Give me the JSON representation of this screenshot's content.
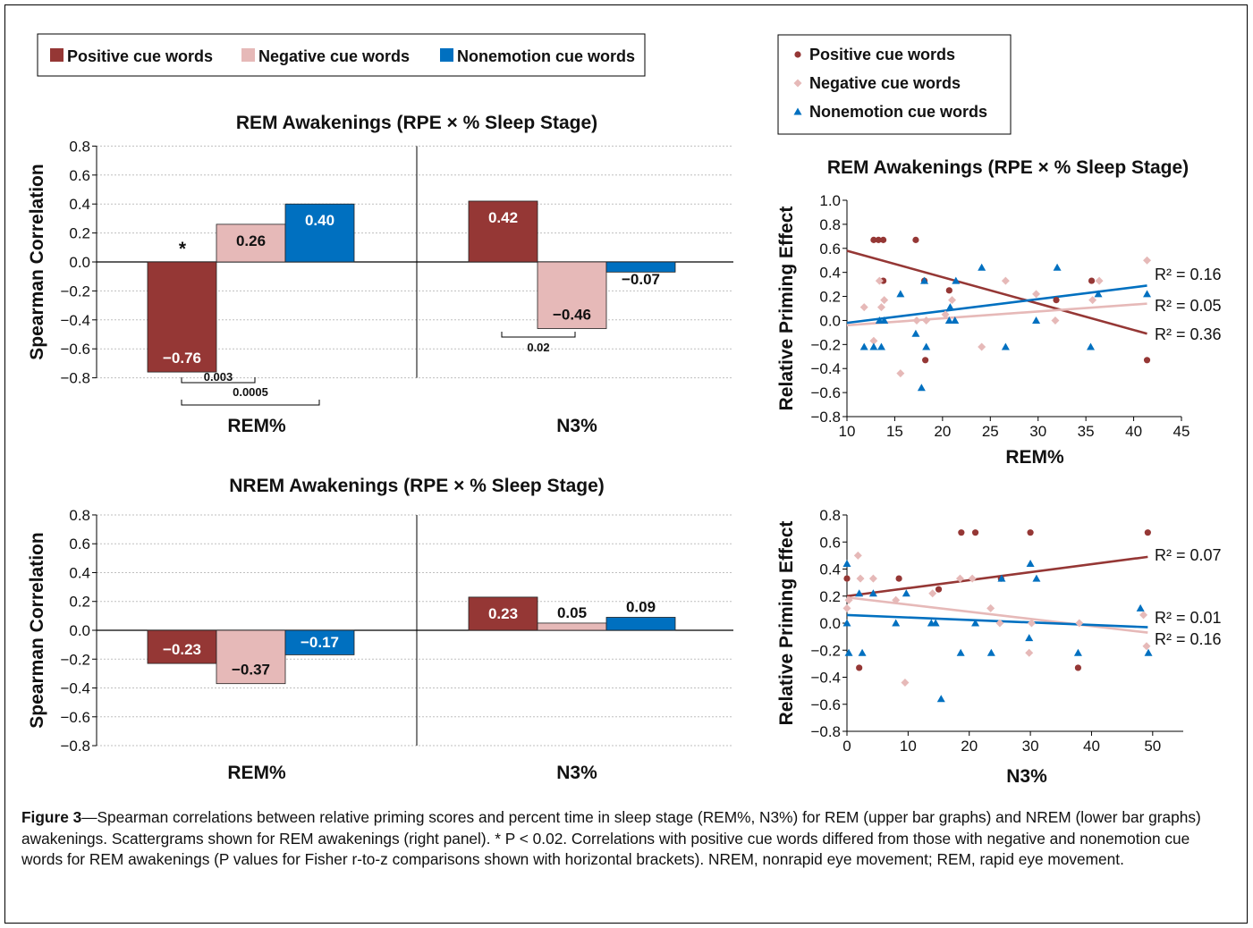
{
  "colors": {
    "positive": "#953735",
    "negative": "#e6b9b8",
    "nonemotion": "#0070c0",
    "grid": "#bfbfbf",
    "axis": "#000000"
  },
  "legend_bar": {
    "items": [
      "Positive cue words",
      "Negative cue words",
      "Nonemotion cue words"
    ]
  },
  "legend_scatter": {
    "items": [
      "Positive cue words",
      "Negative cue words",
      "Nonemotion cue words"
    ]
  },
  "caption": {
    "label": "Figure 3",
    "text": "—Spearman correlations between relative priming scores and percent time in sleep stage (REM%, N3%) for REM (upper bar graphs) and NREM (lower bar graphs) awakenings. Scattergrams shown for REM awakenings (right panel). * P < 0.02. Correlations with positive cue words differed from those with negative and nonemotion cue words for REM awakenings (P values for Fisher r-to-z comparisons shown with horizontal brackets). NREM, nonrapid eye movement; REM, rapid eye movement."
  },
  "chart_data": [
    {
      "type": "bar",
      "title": "REM Awakenings (RPE × % Sleep Stage)",
      "ylabel": "Spearman Correlation",
      "ylim": [
        -0.8,
        0.8
      ],
      "yticks": [
        "0.8",
        "0.6",
        "0.4",
        "0.2",
        "0.0",
        "-0.2",
        "-0.4",
        "-0.6",
        "-0.8"
      ],
      "categories": [
        "REM%",
        "N3%"
      ],
      "series": [
        {
          "name": "Positive cue words",
          "values": [
            -0.76,
            0.42
          ],
          "labels": [
            "−0.76",
            "0.42"
          ]
        },
        {
          "name": "Negative cue words",
          "values": [
            0.26,
            -0.46
          ],
          "labels": [
            "0.26",
            "−0.46"
          ]
        },
        {
          "name": "Nonemotion cue words",
          "values": [
            0.4,
            -0.07
          ],
          "labels": [
            "0.40",
            "−0.07"
          ]
        }
      ],
      "annotations": {
        "star": "*",
        "brackets": [
          "0.003",
          "0.0005",
          "0.02"
        ]
      }
    },
    {
      "type": "bar",
      "title": "NREM Awakenings (RPE × % Sleep Stage)",
      "ylabel": "Spearman Correlation",
      "ylim": [
        -0.8,
        0.8
      ],
      "yticks": [
        "0.8",
        "0.6",
        "0.4",
        "0.2",
        "0.0",
        "-0.2",
        "-0.4",
        "-0.6",
        "-0.8"
      ],
      "categories": [
        "REM%",
        "N3%"
      ],
      "series": [
        {
          "name": "Positive cue words",
          "values": [
            -0.23,
            0.23
          ],
          "labels": [
            "−0.23",
            "0.23"
          ]
        },
        {
          "name": "Negative cue words",
          "values": [
            -0.37,
            0.05
          ],
          "labels": [
            "−0.37",
            "0.05"
          ]
        },
        {
          "name": "Nonemotion cue words",
          "values": [
            -0.17,
            0.09
          ],
          "labels": [
            "−0.17",
            "0.09"
          ]
        }
      ]
    },
    {
      "type": "scatter",
      "title": "REM Awakenings (RPE × % Sleep Stage)",
      "xlabel": "REM%",
      "ylabel": "Relative Priming Effect",
      "xlim": [
        10,
        45
      ],
      "ylim": [
        -0.8,
        1.0
      ],
      "xticks": [
        "10",
        "15",
        "20",
        "25",
        "30",
        "35",
        "40",
        "45"
      ],
      "yticks": [
        "1.0",
        "0.8",
        "0.6",
        "0.4",
        "0.2",
        "0.0",
        "-0.2",
        "-0.4",
        "-0.6",
        "-0.8"
      ],
      "series": [
        {
          "name": "Positive cue words",
          "points": [
            [
              12.8,
              0.67
            ],
            [
              13.3,
              0.67
            ],
            [
              13.8,
              0.67
            ],
            [
              17.2,
              0.67
            ],
            [
              13.8,
              0.33
            ],
            [
              18.1,
              0.33
            ],
            [
              20.7,
              0.25
            ],
            [
              18.2,
              -0.33
            ],
            [
              31.9,
              0.17
            ],
            [
              35.6,
              0.33
            ],
            [
              41.4,
              -0.33
            ]
          ],
          "trend": [
            [
              10,
              0.58
            ],
            [
              41.4,
              -0.11
            ]
          ],
          "r2": "R² = 0.36"
        },
        {
          "name": "Negative cue words",
          "points": [
            [
              11.8,
              0.11
            ],
            [
              12.8,
              -0.17
            ],
            [
              13.4,
              0.33
            ],
            [
              13.6,
              0.11
            ],
            [
              13.9,
              0.17
            ],
            [
              15.6,
              -0.44
            ],
            [
              17.3,
              0.0
            ],
            [
              18.3,
              0.0
            ],
            [
              20.3,
              0.05
            ],
            [
              21.0,
              0.17
            ],
            [
              24.1,
              -0.22
            ],
            [
              26.6,
              0.33
            ],
            [
              29.8,
              0.22
            ],
            [
              31.8,
              0.0
            ],
            [
              35.7,
              0.17
            ],
            [
              36.4,
              0.33
            ],
            [
              41.4,
              0.5
            ]
          ],
          "trend": [
            [
              10,
              -0.04
            ],
            [
              41.4,
              0.14
            ]
          ],
          "r2": "R² = 0.05"
        },
        {
          "name": "Nonemotion cue words",
          "points": [
            [
              11.8,
              -0.22
            ],
            [
              12.8,
              -0.22
            ],
            [
              13.4,
              0.0
            ],
            [
              13.6,
              -0.22
            ],
            [
              13.9,
              0.0
            ],
            [
              15.6,
              0.22
            ],
            [
              17.2,
              -0.11
            ],
            [
              18.3,
              -0.22
            ],
            [
              18.1,
              0.33
            ],
            [
              20.7,
              0.0
            ],
            [
              20.8,
              0.11
            ],
            [
              21.3,
              0.0
            ],
            [
              17.8,
              -0.56
            ],
            [
              21.4,
              0.33
            ],
            [
              24.1,
              0.44
            ],
            [
              26.6,
              -0.22
            ],
            [
              29.8,
              0.0
            ],
            [
              32.0,
              0.44
            ],
            [
              35.5,
              -0.22
            ],
            [
              36.3,
              0.22
            ],
            [
              41.4,
              0.22
            ]
          ],
          "trend": [
            [
              10,
              -0.02
            ],
            [
              41.4,
              0.29
            ]
          ],
          "r2": "R² = 0.16"
        }
      ]
    },
    {
      "type": "scatter",
      "title": "",
      "xlabel": "N3%",
      "ylabel": "Relative Priming Effect",
      "xlim": [
        0,
        55
      ],
      "ylim": [
        -0.8,
        0.8
      ],
      "xticks": [
        "0",
        "10",
        "20",
        "30",
        "40",
        "50"
      ],
      "yticks": [
        "0.8",
        "0.6",
        "0.4",
        "0.2",
        "0.0",
        "-0.2",
        "-0.4",
        "-0.6",
        "-0.8"
      ],
      "series": [
        {
          "name": "Positive cue words",
          "points": [
            [
              0,
              0.33
            ],
            [
              2,
              -0.33
            ],
            [
              8.5,
              0.33
            ],
            [
              15,
              0.25
            ],
            [
              18.7,
              0.67
            ],
            [
              21,
              0.67
            ],
            [
              25.2,
              0.33
            ],
            [
              30,
              0.67
            ],
            [
              37.8,
              -0.33
            ],
            [
              49.2,
              0.67
            ]
          ],
          "trend": [
            [
              0,
              0.2
            ],
            [
              49.2,
              0.49
            ]
          ],
          "r2": "R² = 0.07"
        },
        {
          "name": "Negative cue words",
          "points": [
            [
              0,
              0.11
            ],
            [
              0.3,
              0.17
            ],
            [
              1.8,
              0.5
            ],
            [
              2.2,
              0.33
            ],
            [
              4.3,
              0.33
            ],
            [
              8,
              0.17
            ],
            [
              9.5,
              -0.44
            ],
            [
              14,
              0.22
            ],
            [
              18.5,
              0.33
            ],
            [
              20.5,
              0.33
            ],
            [
              23.5,
              0.11
            ],
            [
              25,
              0.0
            ],
            [
              29.8,
              -0.22
            ],
            [
              30.2,
              0.0
            ],
            [
              38,
              0.0
            ],
            [
              48.5,
              0.06
            ],
            [
              49,
              -0.17
            ]
          ],
          "trend": [
            [
              0,
              0.19
            ],
            [
              49.2,
              -0.07
            ]
          ],
          "r2": "R² = 0.16"
        },
        {
          "name": "Nonemotion cue words",
          "points": [
            [
              0,
              0.44
            ],
            [
              0,
              0.0
            ],
            [
              0.3,
              -0.22
            ],
            [
              2,
              0.22
            ],
            [
              2.5,
              -0.22
            ],
            [
              4.3,
              0.22
            ],
            [
              8,
              0.0
            ],
            [
              9.7,
              0.22
            ],
            [
              13.8,
              0.0
            ],
            [
              14.5,
              0.0
            ],
            [
              15.4,
              -0.56
            ],
            [
              18.6,
              -0.22
            ],
            [
              21,
              0.0
            ],
            [
              23.6,
              -0.22
            ],
            [
              25.3,
              0.33
            ],
            [
              29.8,
              -0.11
            ],
            [
              30,
              0.44
            ],
            [
              31,
              0.33
            ],
            [
              37.8,
              -0.22
            ],
            [
              48,
              0.11
            ],
            [
              49.3,
              -0.22
            ]
          ],
          "trend": [
            [
              0,
              0.06
            ],
            [
              49.2,
              -0.03
            ]
          ],
          "r2": "R² = 0.01"
        }
      ]
    }
  ]
}
